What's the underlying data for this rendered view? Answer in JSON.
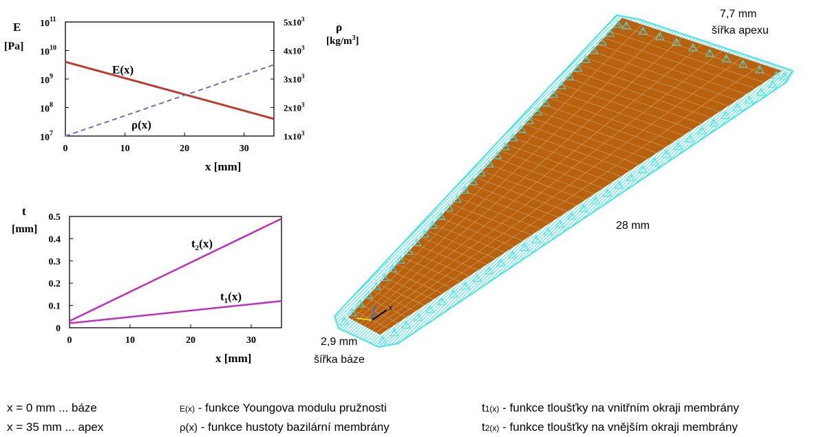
{
  "chart_data": [
    {
      "type": "line",
      "left_axis": {
        "label_line1": "E",
        "label_line2": "[Pa]",
        "scale": "log",
        "range": [
          10000000,
          100000000000
        ],
        "ticks": [
          {
            "value": 10000000,
            "base": "10",
            "exp": "7"
          },
          {
            "value": 100000000,
            "base": "10",
            "exp": "8"
          },
          {
            "value": 1000000000,
            "base": "10",
            "exp": "9"
          },
          {
            "value": 10000000000,
            "base": "10",
            "exp": "10"
          },
          {
            "value": 100000000000,
            "base": "10",
            "exp": "11"
          }
        ]
      },
      "right_axis": {
        "label_line1": "ρ",
        "label_line2": "[kg/m",
        "label_sup": "3",
        "label_end": "]",
        "scale": "linear",
        "range": [
          1000,
          5000
        ],
        "ticks": [
          {
            "value": 1000,
            "mant": "1x10",
            "exp": "3"
          },
          {
            "value": 2000,
            "mant": "2x10",
            "exp": "3"
          },
          {
            "value": 3000,
            "mant": "3x10",
            "exp": "3"
          },
          {
            "value": 4000,
            "mant": "4x10",
            "exp": "3"
          },
          {
            "value": 5000,
            "mant": "5x10",
            "exp": "3"
          }
        ]
      },
      "x_axis": {
        "label": "x [mm]",
        "range": [
          0,
          35
        ],
        "ticks": [
          "0",
          "10",
          "20",
          "30"
        ],
        "tick_values": [
          0,
          10,
          20,
          30
        ]
      },
      "series": [
        {
          "name": "E(x)",
          "axis": "left",
          "color": "#c0392b",
          "style": "solid",
          "x": [
            0,
            35
          ],
          "y": [
            4000000000,
            40000000
          ]
        },
        {
          "name": "ρ(x)",
          "axis": "right",
          "color": "#6b6bc8",
          "style": "dashed",
          "x": [
            0,
            35
          ],
          "y": [
            1000,
            3500
          ]
        }
      ],
      "grid": false
    },
    {
      "type": "line",
      "y_axis": {
        "label_line1": "t",
        "label_line2": "[mm]",
        "range": [
          0,
          0.5
        ],
        "ticks": [
          "0",
          "0.1",
          "0.2",
          "0.3",
          "0.4",
          "0.5"
        ],
        "tick_values": [
          0,
          0.1,
          0.2,
          0.3,
          0.4,
          0.5
        ]
      },
      "x_axis": {
        "label": "x [mm]",
        "range": [
          0,
          35
        ],
        "ticks": [
          "0",
          "10",
          "20",
          "30"
        ],
        "tick_values": [
          0,
          10,
          20,
          30
        ]
      },
      "series": [
        {
          "name_base": "t",
          "name_sub": "2",
          "name_end": "(x)",
          "color": "#c02ec0",
          "x": [
            0,
            35
          ],
          "y": [
            0.03,
            0.49
          ]
        },
        {
          "name_base": "t",
          "name_sub": "1",
          "name_end": "(x)",
          "color": "#c02ec0",
          "x": [
            0,
            35
          ],
          "y": [
            0.02,
            0.12
          ]
        }
      ],
      "grid": false
    }
  ],
  "model": {
    "apex_width": "7,7 mm",
    "apex_caption": "šířka apexu",
    "length": "28 mm",
    "base_width": "2,9 mm",
    "base_caption": "šířka báze",
    "axis_label": "X",
    "colors": {
      "membrane": "#b8620f",
      "mesh": "#41e6e6"
    }
  },
  "legend": {
    "col1": [
      "x = 0 mm ... báze",
      "x = 35 mm ... apex"
    ],
    "col2": [
      {
        "fn": "E(x)",
        "text": " - funkce Youngova modulu pružnosti"
      },
      {
        "fn": "ρ(x)",
        "text": " - funkce hustoty bazilární membrány"
      }
    ],
    "col3": [
      {
        "base": "t",
        "sub": "1",
        "fn_end": "(x)",
        "text": " - funkce tloušťky na vnitřním okraji membrány"
      },
      {
        "base": "t",
        "sub": "2",
        "fn_end": "(x)",
        "text": " - funkce tloušťky na vnějším okraji membrány"
      }
    ]
  }
}
